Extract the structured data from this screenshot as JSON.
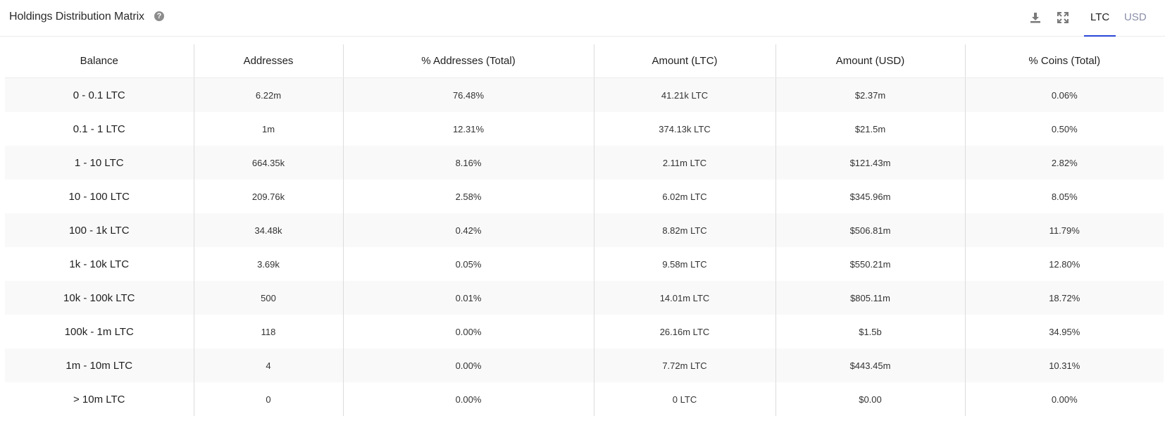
{
  "header": {
    "title": "Holdings Distribution Matrix",
    "help_icon": "question-circle-icon",
    "download_icon": "download-icon",
    "expand_icon": "expand-icon",
    "tabs": [
      {
        "label": "LTC",
        "active": true
      },
      {
        "label": "USD",
        "active": false
      }
    ],
    "accent_color": "#2a46d6"
  },
  "table": {
    "columns": [
      "Balance",
      "Addresses",
      "% Addresses (Total)",
      "Amount (LTC)",
      "Amount (USD)",
      "% Coins (Total)"
    ],
    "rows": [
      [
        "0 - 0.1 LTC",
        "6.22m",
        "76.48%",
        "41.21k LTC",
        "$2.37m",
        "0.06%"
      ],
      [
        "0.1 - 1 LTC",
        "1m",
        "12.31%",
        "374.13k LTC",
        "$21.5m",
        "0.50%"
      ],
      [
        "1 - 10 LTC",
        "664.35k",
        "8.16%",
        "2.11m LTC",
        "$121.43m",
        "2.82%"
      ],
      [
        "10 - 100 LTC",
        "209.76k",
        "2.58%",
        "6.02m LTC",
        "$345.96m",
        "8.05%"
      ],
      [
        "100 - 1k LTC",
        "34.48k",
        "0.42%",
        "8.82m LTC",
        "$506.81m",
        "11.79%"
      ],
      [
        "1k - 10k LTC",
        "3.69k",
        "0.05%",
        "9.58m LTC",
        "$550.21m",
        "12.80%"
      ],
      [
        "10k - 100k LTC",
        "500",
        "0.01%",
        "14.01m LTC",
        "$805.11m",
        "18.72%"
      ],
      [
        "100k - 1m LTC",
        "118",
        "0.00%",
        "26.16m LTC",
        "$1.5b",
        "34.95%"
      ],
      [
        "1m - 10m LTC",
        "4",
        "0.00%",
        "7.72m LTC",
        "$443.45m",
        "10.31%"
      ],
      [
        "> 10m LTC",
        "0",
        "0.00%",
        "0 LTC",
        "$0.00",
        "0.00%"
      ]
    ]
  }
}
